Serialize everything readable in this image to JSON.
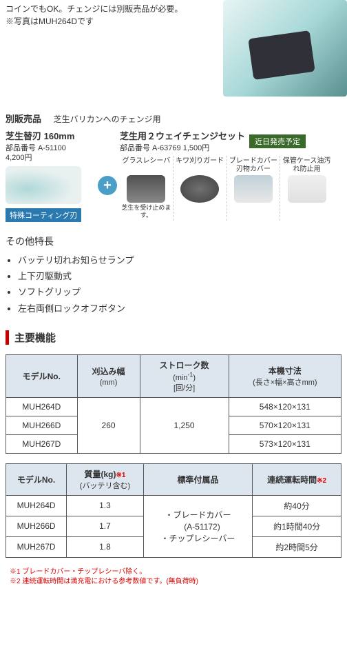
{
  "top": {
    "text1": "コインでもOK。チェンジには別販売品が必要。",
    "text2": "※写真はMUH264Dです"
  },
  "accessory_section": {
    "label": "別販売品",
    "sub": "芝生バリカンへのチェンジ用",
    "left": {
      "title": "芝生替刃 160mm",
      "part": "部品番号 A-51100",
      "price": "4,200円",
      "badge": "特殊コーティング刃"
    },
    "right": {
      "title": "芝生用２ウェイチェンジセット",
      "part_price": "部品番号 A-63769  1,500円",
      "soon": "近日発売予定",
      "items": [
        {
          "label": "グラスレシーバ",
          "note": "芝生を受け止めます。"
        },
        {
          "label": "キワ刈りガード",
          "note": ""
        },
        {
          "label": "ブレードカバー刃物カバー",
          "note": ""
        },
        {
          "label": "保管ケース油汚れ防止用",
          "note": ""
        }
      ]
    }
  },
  "other": {
    "head": "その他特長",
    "features": [
      "バッテリ切れお知らせランプ",
      "上下刃駆動式",
      "ソフトグリップ",
      "左右両側ロックオフボタン"
    ]
  },
  "spec_head": "主要機能",
  "table1": {
    "headers": {
      "model": "モデルNo.",
      "width": "刈込み幅",
      "width_unit": "(mm)",
      "stroke": "ストローク数",
      "stroke_unit1": "(min",
      "stroke_unit2": ")",
      "stroke_unit3": "[回/分]",
      "size": "本機寸法",
      "size_unit": "(長さ×幅×高さmm)"
    },
    "width_val": "260",
    "stroke_val": "1,250",
    "rows": [
      {
        "model": "MUH264D",
        "size": "548×120×131"
      },
      {
        "model": "MUH266D",
        "size": "570×120×131"
      },
      {
        "model": "MUH267D",
        "size": "573×120×131"
      }
    ]
  },
  "table2": {
    "headers": {
      "model": "モデルNo.",
      "mass": "質量(kg)",
      "mass_note": "※1",
      "mass_sub": "(バッテリ含む)",
      "accessory": "標準付属品",
      "runtime": "連続運転時間",
      "runtime_note": "※2"
    },
    "accessory_val1": "・ブレードカバー",
    "accessory_val2": "　(A-51172)",
    "accessory_val3": "・チップレシーバー",
    "rows": [
      {
        "model": "MUH264D",
        "mass": "1.3",
        "runtime": "約40分"
      },
      {
        "model": "MUH266D",
        "mass": "1.7",
        "runtime": "約1時間40分"
      },
      {
        "model": "MUH267D",
        "mass": "1.8",
        "runtime": "約2時間5分"
      }
    ]
  },
  "footnotes": {
    "n1": "※1 ブレードカバー・チップレシーバ除く。",
    "n2": "※2 連続運転時間は満充電における参考数値です。(無負荷時)"
  }
}
